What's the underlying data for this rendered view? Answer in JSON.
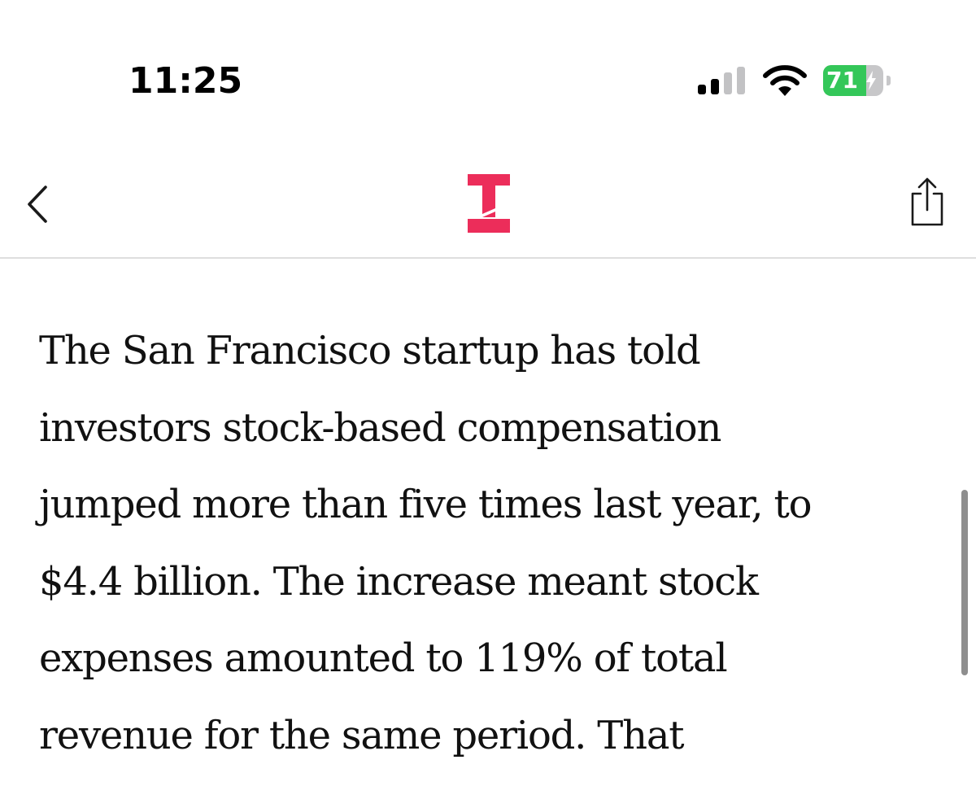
{
  "status_bar": {
    "time": "11:25",
    "battery_percent": "71",
    "battery_level": 0.71,
    "battery_charging": true,
    "signal_bars_active": 2,
    "signal_bars_total": 4,
    "icons": [
      "cellular-signal-icon",
      "wifi-icon",
      "battery-charging-icon"
    ]
  },
  "nav_bar": {
    "back_icon": "chevron-left-icon",
    "logo_icon": "publication-logo-icon",
    "share_icon": "share-icon"
  },
  "article": {
    "text": "The San Francisco startup has told\ninvestors stock-based compensation\njumped more than five times last year, to\n$4.4 billion. The increase meant stock\nexpenses amounted to 119% of total\nrevenue for the same period. That"
  },
  "colors": {
    "brand_accent": "#ec2d5a",
    "battery_fill": "#34c759",
    "text": "#111111"
  }
}
